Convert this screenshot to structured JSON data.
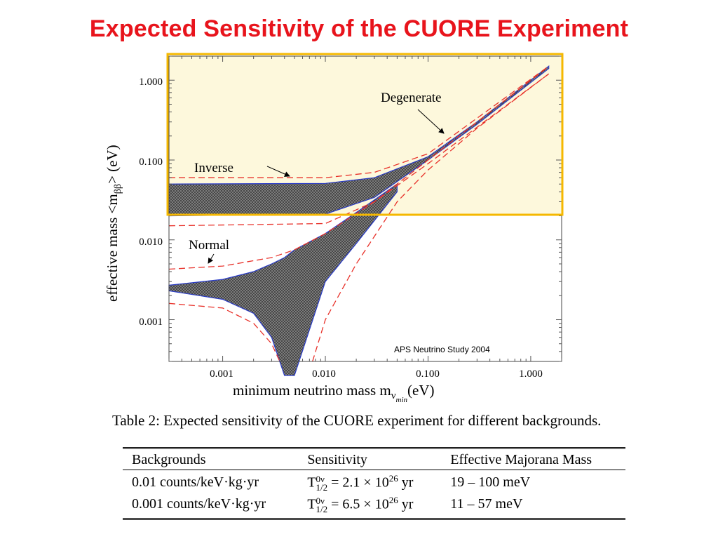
{
  "title": "Expected Sensitivity of the CUORE Experiment",
  "chart_data": {
    "type": "area",
    "x_scale": "log",
    "y_scale": "log",
    "xlim": [
      0.0003,
      2.0
    ],
    "ylim": [
      0.0003,
      2.0
    ],
    "x_ticks": [
      "0.001",
      "0.010",
      "0.100",
      "1.000"
    ],
    "y_ticks": [
      "1.000",
      "0.100",
      "0.010",
      "0.001"
    ],
    "xlabel_main": "minimum neutrino mass  m",
    "xlabel_sub": "ν",
    "xlabel_subsub": "min",
    "xlabel_unit": "(eV)",
    "ylabel_main": "effective mass <m",
    "ylabel_sub": "ββ",
    "ylabel_unit": "> (eV)",
    "annotations": {
      "degenerate": "Degenerate",
      "inverse": "Inverse",
      "normal": "Normal",
      "source": "APS Neutrino Study 2004"
    },
    "highlight_color": "#f5b800",
    "highlight_fill": "#fdf8dc",
    "band_color": "#6a6a6a",
    "band_edge_color": "#2a3cc8",
    "dashed_color": "#e8312a",
    "inverted_band": {
      "x": [
        0.0003,
        0.01,
        0.03,
        0.1,
        0.3,
        1.5
      ],
      "upper": [
        0.05,
        0.051,
        0.06,
        0.11,
        0.3,
        1.5
      ],
      "lower": [
        0.02,
        0.021,
        0.034,
        0.1,
        0.28,
        1.4
      ]
    },
    "normal_band": {
      "x": [
        0.0003,
        0.001,
        0.002,
        0.003,
        0.004,
        0.005,
        0.01,
        0.02,
        0.05
      ],
      "upper": [
        0.0027,
        0.0032,
        0.004,
        0.005,
        0.006,
        0.0075,
        0.012,
        0.022,
        0.05
      ],
      "lower": [
        0.0023,
        0.0018,
        0.0012,
        0.0006,
        0.0002,
        0.0002,
        0.003,
        0.009,
        0.04
      ]
    },
    "dashed_bounds": [
      {
        "x": [
          0.0003,
          0.01,
          0.03,
          0.1,
          1.5
        ],
        "y": [
          0.06,
          0.06,
          0.07,
          0.12,
          1.5
        ]
      },
      {
        "x": [
          0.0003,
          0.01,
          0.03,
          0.1,
          1.5
        ],
        "y": [
          0.015,
          0.016,
          0.03,
          0.09,
          1.2
        ]
      },
      {
        "x": [
          0.0003,
          0.001,
          0.003,
          0.005,
          0.01,
          0.03,
          0.1,
          1.5
        ],
        "y": [
          0.0043,
          0.0047,
          0.006,
          0.0075,
          0.012,
          0.03,
          0.1,
          1.5
        ]
      },
      {
        "x": [
          0.0003,
          0.001,
          0.002,
          0.003,
          0.0036
        ],
        "y": [
          0.0016,
          0.0014,
          0.0009,
          0.0005,
          0.0003
        ]
      },
      {
        "x": [
          0.0075,
          0.01,
          0.02,
          0.05,
          0.1,
          0.3,
          1.5
        ],
        "y": [
          0.0003,
          0.001,
          0.005,
          0.03,
          0.075,
          0.25,
          1.2
        ]
      }
    ]
  },
  "table": {
    "caption": "Table 2: Expected sensitivity of the CUORE experiment for different backgrounds.",
    "headers": [
      "Backgrounds",
      "Sensitivity",
      "Effective Majorana Mass"
    ],
    "rows": [
      {
        "background": "0.01 counts/keV·kg·yr",
        "T": "T",
        "sup": "0ν",
        "sub": "1/2",
        "value": " = 2.1 × 10",
        "exp": "26",
        "unit": " yr",
        "mass": "19 – 100 meV"
      },
      {
        "background": "0.001 counts/keV·kg·yr",
        "T": "T",
        "sup": "0ν",
        "sub": "1/2",
        "value": " = 6.5 × 10",
        "exp": "26",
        "unit": " yr",
        "mass": "11 – 57 meV"
      }
    ]
  }
}
